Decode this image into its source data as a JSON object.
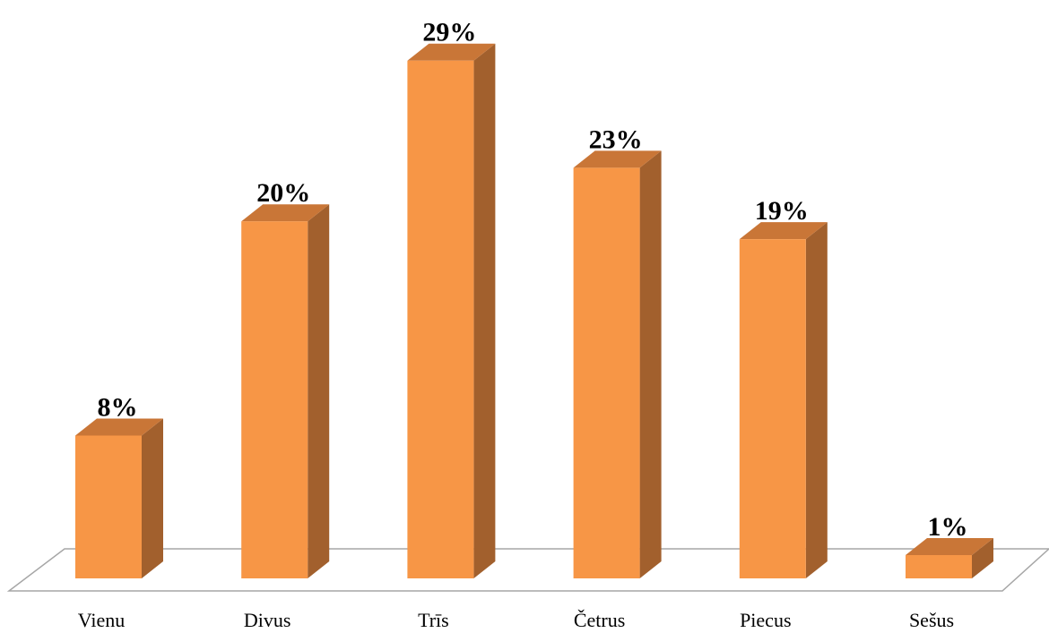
{
  "chart_data": {
    "type": "bar",
    "three_d": true,
    "categories": [
      "Vienu",
      "Divus",
      "Trīs",
      "Četrus",
      "Piecus",
      "Sešus"
    ],
    "values": [
      8,
      20,
      29,
      23,
      19,
      1
    ],
    "data_labels": [
      "8%",
      "20%",
      "29%",
      "23%",
      "19%",
      "1%"
    ],
    "value_unit": "%",
    "ylim": [
      0,
      30
    ],
    "grid": false,
    "legend": "none",
    "colors": {
      "front": "#F79646",
      "side": "#A2602D",
      "top": "#C97637",
      "floor_edge": "#A6A6A6"
    }
  }
}
